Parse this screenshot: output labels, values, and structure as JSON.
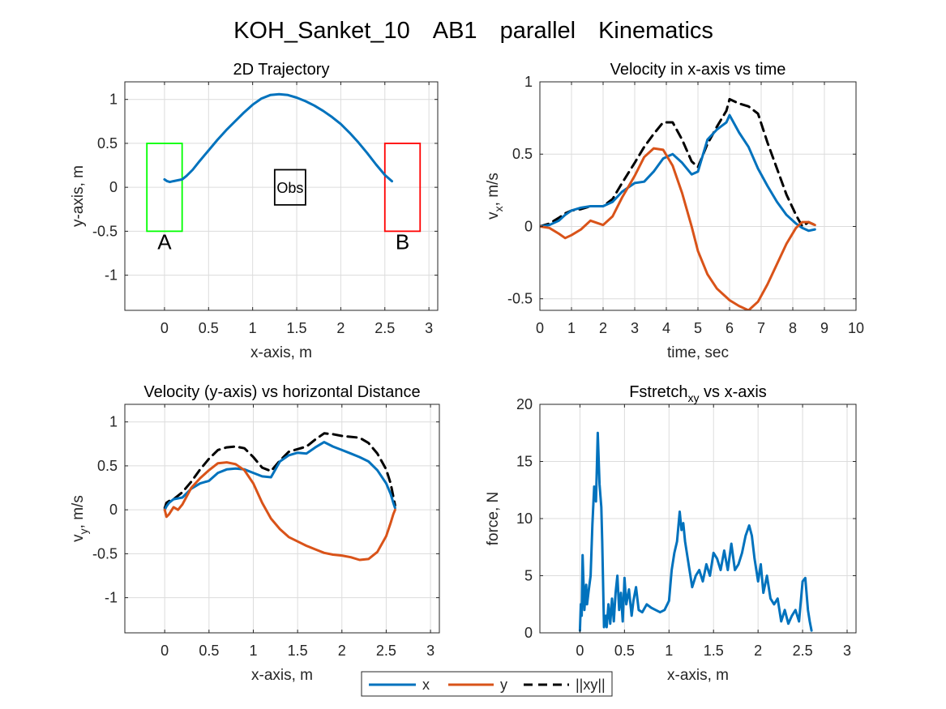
{
  "figure_title": {
    "subject": "KOH_Sanket_10",
    "condition": "AB1",
    "mode": "parallel",
    "kind": "Kinematics"
  },
  "legend": {
    "entries": [
      "x",
      "y",
      "||xy||"
    ],
    "position": "bottom-center"
  },
  "colors": {
    "x": "#0072BD",
    "y": "#D95319",
    "xy": "#000000",
    "start_box": "#00FF00",
    "end_box": "#FF0000",
    "obs_box": "#000000"
  },
  "chart_data": [
    {
      "id": "traj",
      "type": "line",
      "title": "2D Trajectory",
      "xlabel": "x-axis, m",
      "ylabel": "y-axis, m",
      "xlim": [
        -0.45,
        3.1
      ],
      "ylim": [
        -1.4,
        1.2
      ],
      "xticks": [
        0,
        0.5,
        1,
        1.5,
        2,
        2.5,
        3
      ],
      "xtick_labels": [
        "0",
        "0.5",
        "1",
        "1.5",
        "2",
        "2.5",
        "3"
      ],
      "yticks": [
        -1,
        -0.5,
        0,
        0.5,
        1
      ],
      "ytick_labels": [
        "-1",
        "-0.5",
        "0",
        "0.5",
        "1"
      ],
      "grid": true,
      "boxes": [
        {
          "name": "start",
          "label": "A",
          "x": [
            -0.2,
            0.2
          ],
          "y": [
            -0.5,
            0.5
          ],
          "color": "#00FF00"
        },
        {
          "name": "end",
          "label": "B",
          "x": [
            2.5,
            2.9
          ],
          "y": [
            -0.5,
            0.5
          ],
          "color": "#FF0000"
        },
        {
          "name": "obstacle",
          "label": "Obs",
          "x": [
            1.25,
            1.6
          ],
          "y": [
            -0.2,
            0.2
          ],
          "color": "#000000"
        }
      ],
      "series": [
        {
          "key": "x",
          "color": "#0072BD",
          "x": [
            0.0,
            0.03,
            0.06,
            0.1,
            0.15,
            0.2,
            0.25,
            0.32,
            0.4,
            0.5,
            0.6,
            0.7,
            0.8,
            0.9,
            1.0,
            1.1,
            1.2,
            1.3,
            1.4,
            1.5,
            1.6,
            1.7,
            1.8,
            1.9,
            2.0,
            2.1,
            2.2,
            2.3,
            2.4,
            2.5,
            2.58
          ],
          "y": [
            0.09,
            0.07,
            0.06,
            0.07,
            0.08,
            0.09,
            0.13,
            0.2,
            0.3,
            0.42,
            0.54,
            0.65,
            0.75,
            0.85,
            0.94,
            1.01,
            1.05,
            1.06,
            1.05,
            1.02,
            0.98,
            0.93,
            0.87,
            0.8,
            0.72,
            0.62,
            0.51,
            0.39,
            0.26,
            0.14,
            0.07
          ]
        }
      ]
    },
    {
      "id": "vx_time",
      "type": "line",
      "title": "Velocity in x-axis vs time",
      "xlabel": "time, sec",
      "ylabel_main": "v",
      "ylabel_sub": "x",
      "ylabel_rest": ", m/s",
      "xlim": [
        0,
        10
      ],
      "ylim": [
        -0.58,
        1.0
      ],
      "xticks": [
        0,
        1,
        2,
        3,
        4,
        5,
        6,
        7,
        8,
        9,
        10
      ],
      "xtick_labels": [
        "0",
        "1",
        "2",
        "3",
        "4",
        "5",
        "6",
        "7",
        "8",
        "9",
        "10"
      ],
      "yticks": [
        -0.5,
        0,
        0.5,
        1
      ],
      "ytick_labels": [
        "-0.5",
        "0",
        "0.5",
        "1"
      ],
      "grid": true,
      "series": [
        {
          "key": "xy",
          "color": "#000000",
          "x": [
            0,
            0.3,
            0.6,
            0.8,
            1.0,
            1.3,
            1.6,
            2.0,
            2.3,
            2.6,
            3.0,
            3.3,
            3.6,
            3.9,
            4.2,
            4.5,
            4.8,
            5.0,
            5.3,
            5.6,
            5.9,
            6.0,
            6.3,
            6.6,
            6.9,
            7.2,
            7.5,
            7.8,
            8.1,
            8.3,
            8.5,
            8.7
          ],
          "y": [
            0.0,
            0.02,
            0.06,
            0.09,
            0.11,
            0.12,
            0.14,
            0.14,
            0.19,
            0.3,
            0.44,
            0.55,
            0.64,
            0.72,
            0.72,
            0.6,
            0.45,
            0.41,
            0.57,
            0.69,
            0.8,
            0.88,
            0.85,
            0.83,
            0.78,
            0.58,
            0.4,
            0.22,
            0.08,
            0.0,
            0.03,
            0.01
          ]
        },
        {
          "key": "x",
          "color": "#0072BD",
          "x": [
            0,
            0.3,
            0.6,
            0.8,
            1.0,
            1.3,
            1.6,
            2.0,
            2.3,
            2.6,
            3.0,
            3.3,
            3.6,
            3.9,
            4.2,
            4.5,
            4.8,
            5.0,
            5.3,
            5.6,
            5.9,
            6.0,
            6.3,
            6.6,
            6.9,
            7.2,
            7.5,
            7.8,
            8.1,
            8.3,
            8.5,
            8.7
          ],
          "y": [
            0.0,
            0.01,
            0.04,
            0.08,
            0.11,
            0.13,
            0.14,
            0.14,
            0.17,
            0.24,
            0.3,
            0.31,
            0.38,
            0.47,
            0.5,
            0.44,
            0.36,
            0.38,
            0.6,
            0.67,
            0.72,
            0.77,
            0.65,
            0.55,
            0.4,
            0.28,
            0.17,
            0.08,
            0.02,
            -0.01,
            -0.03,
            -0.02
          ]
        },
        {
          "key": "y",
          "color": "#D95319",
          "x": [
            0,
            0.3,
            0.6,
            0.8,
            1.0,
            1.3,
            1.6,
            2.0,
            2.3,
            2.6,
            3.0,
            3.3,
            3.6,
            3.9,
            4.2,
            4.5,
            4.8,
            5.0,
            5.3,
            5.6,
            5.9,
            6.0,
            6.3,
            6.6,
            6.9,
            7.2,
            7.5,
            7.8,
            8.1,
            8.3,
            8.5,
            8.7
          ],
          "y": [
            0.0,
            -0.01,
            -0.05,
            -0.08,
            -0.06,
            -0.02,
            0.04,
            0.01,
            0.07,
            0.2,
            0.35,
            0.48,
            0.54,
            0.53,
            0.42,
            0.23,
            0.0,
            -0.17,
            -0.33,
            -0.43,
            -0.49,
            -0.51,
            -0.55,
            -0.58,
            -0.52,
            -0.4,
            -0.26,
            -0.12,
            -0.01,
            0.03,
            0.03,
            0.01
          ]
        }
      ]
    },
    {
      "id": "vy_dist",
      "type": "line",
      "title": "Velocity (y-axis) vs horizontal Distance",
      "xlabel": "x-axis, m",
      "ylabel_main": "v",
      "ylabel_sub": "y",
      "ylabel_rest": ", m/s",
      "xlim": [
        -0.45,
        3.1
      ],
      "ylim": [
        -1.4,
        1.2
      ],
      "xticks": [
        0,
        0.5,
        1,
        1.5,
        2,
        2.5,
        3
      ],
      "xtick_labels": [
        "0",
        "0.5",
        "1",
        "1.5",
        "2",
        "2.5",
        "3"
      ],
      "yticks": [
        -1,
        -0.5,
        0,
        0.5,
        1
      ],
      "ytick_labels": [
        "-1",
        "-0.5",
        "0",
        "0.5",
        "1"
      ],
      "grid": true,
      "series": [
        {
          "key": "xy",
          "color": "#000000",
          "x": [
            0.0,
            0.02,
            0.05,
            0.1,
            0.2,
            0.3,
            0.4,
            0.5,
            0.6,
            0.7,
            0.8,
            0.9,
            1.0,
            1.1,
            1.2,
            1.3,
            1.4,
            1.5,
            1.6,
            1.7,
            1.8,
            1.9,
            2.0,
            2.1,
            2.2,
            2.3,
            2.4,
            2.5,
            2.55,
            2.58,
            2.6
          ],
          "y": [
            0.02,
            0.08,
            0.1,
            0.12,
            0.2,
            0.32,
            0.46,
            0.58,
            0.68,
            0.71,
            0.72,
            0.7,
            0.6,
            0.48,
            0.44,
            0.56,
            0.66,
            0.69,
            0.72,
            0.8,
            0.87,
            0.86,
            0.84,
            0.83,
            0.82,
            0.76,
            0.64,
            0.46,
            0.3,
            0.15,
            0.05
          ]
        },
        {
          "key": "x",
          "color": "#0072BD",
          "x": [
            0.0,
            0.02,
            0.05,
            0.1,
            0.2,
            0.3,
            0.4,
            0.5,
            0.6,
            0.7,
            0.8,
            0.9,
            1.0,
            1.1,
            1.2,
            1.3,
            1.4,
            1.5,
            1.6,
            1.7,
            1.8,
            1.9,
            2.0,
            2.1,
            2.2,
            2.3,
            2.4,
            2.5,
            2.55,
            2.58,
            2.6
          ],
          "y": [
            0.0,
            0.04,
            0.08,
            0.12,
            0.14,
            0.24,
            0.3,
            0.33,
            0.42,
            0.46,
            0.47,
            0.46,
            0.42,
            0.38,
            0.37,
            0.55,
            0.62,
            0.65,
            0.64,
            0.71,
            0.77,
            0.72,
            0.68,
            0.64,
            0.6,
            0.55,
            0.45,
            0.3,
            0.18,
            0.08,
            0.02
          ]
        },
        {
          "key": "y",
          "color": "#D95319",
          "x": [
            0.0,
            0.02,
            0.05,
            0.1,
            0.15,
            0.2,
            0.3,
            0.4,
            0.5,
            0.6,
            0.7,
            0.8,
            0.9,
            1.0,
            1.1,
            1.2,
            1.3,
            1.4,
            1.5,
            1.6,
            1.7,
            1.8,
            1.9,
            2.0,
            2.1,
            2.2,
            2.3,
            2.4,
            2.5,
            2.55,
            2.58,
            2.6
          ],
          "y": [
            0.0,
            -0.08,
            -0.05,
            0.03,
            0.0,
            0.06,
            0.25,
            0.36,
            0.45,
            0.53,
            0.54,
            0.52,
            0.45,
            0.3,
            0.08,
            -0.1,
            -0.22,
            -0.31,
            -0.36,
            -0.41,
            -0.45,
            -0.49,
            -0.51,
            -0.52,
            -0.54,
            -0.57,
            -0.56,
            -0.48,
            -0.3,
            -0.15,
            -0.05,
            0.0
          ]
        }
      ]
    },
    {
      "id": "fstretch",
      "type": "line",
      "title_main": "Fstretch",
      "title_sub": "xy",
      "title_rest": " vs x-axis",
      "xlabel": "x-axis, m",
      "ylabel": "force, N",
      "xlim": [
        -0.45,
        3.1
      ],
      "ylim": [
        0,
        20
      ],
      "xticks": [
        0,
        0.5,
        1,
        1.5,
        2,
        2.5,
        3
      ],
      "xtick_labels": [
        "0",
        "0.5",
        "1",
        "1.5",
        "2",
        "2.5",
        "3"
      ],
      "yticks": [
        0,
        5,
        10,
        15,
        20
      ],
      "ytick_labels": [
        "0",
        "5",
        "10",
        "15",
        "20"
      ],
      "grid": true,
      "series": [
        {
          "key": "x",
          "color": "#0072BD",
          "x": [
            0.0,
            0.01,
            0.02,
            0.03,
            0.05,
            0.07,
            0.08,
            0.1,
            0.12,
            0.14,
            0.16,
            0.18,
            0.2,
            0.22,
            0.24,
            0.25,
            0.27,
            0.29,
            0.3,
            0.32,
            0.34,
            0.36,
            0.38,
            0.4,
            0.42,
            0.44,
            0.46,
            0.48,
            0.5,
            0.52,
            0.55,
            0.58,
            0.6,
            0.63,
            0.66,
            0.7,
            0.75,
            0.8,
            0.85,
            0.9,
            0.95,
            1.0,
            1.03,
            1.06,
            1.09,
            1.12,
            1.14,
            1.16,
            1.18,
            1.2,
            1.23,
            1.26,
            1.3,
            1.34,
            1.38,
            1.42,
            1.46,
            1.5,
            1.54,
            1.58,
            1.62,
            1.66,
            1.7,
            1.74,
            1.78,
            1.82,
            1.86,
            1.9,
            1.93,
            1.96,
            2.0,
            2.03,
            2.06,
            2.1,
            2.14,
            2.18,
            2.22,
            2.26,
            2.3,
            2.34,
            2.38,
            2.42,
            2.46,
            2.5,
            2.53,
            2.56,
            2.58,
            2.6
          ],
          "y": [
            0.2,
            2.5,
            1.5,
            6.8,
            2.0,
            4.2,
            2.5,
            3.8,
            5.0,
            9.5,
            12.8,
            11.5,
            17.5,
            13.0,
            11.0,
            8.0,
            0.5,
            1.5,
            0.5,
            2.5,
            0.8,
            3.0,
            1.0,
            3.5,
            5.0,
            2.0,
            3.5,
            1.0,
            4.8,
            2.5,
            3.8,
            1.5,
            2.8,
            4.0,
            2.0,
            1.8,
            2.5,
            2.2,
            2.0,
            1.8,
            2.0,
            2.8,
            5.5,
            7.0,
            8.0,
            10.6,
            9.0,
            9.6,
            8.0,
            7.0,
            5.5,
            4.0,
            5.0,
            5.5,
            4.5,
            6.0,
            5.0,
            7.0,
            6.5,
            5.5,
            7.2,
            5.5,
            7.8,
            5.5,
            6.0,
            7.0,
            8.5,
            9.4,
            8.5,
            6.5,
            4.5,
            6.0,
            3.5,
            5.0,
            3.0,
            2.5,
            3.0,
            1.0,
            2.0,
            0.8,
            1.5,
            2.0,
            1.0,
            4.5,
            4.8,
            2.0,
            1.0,
            0.2
          ]
        }
      ]
    }
  ]
}
